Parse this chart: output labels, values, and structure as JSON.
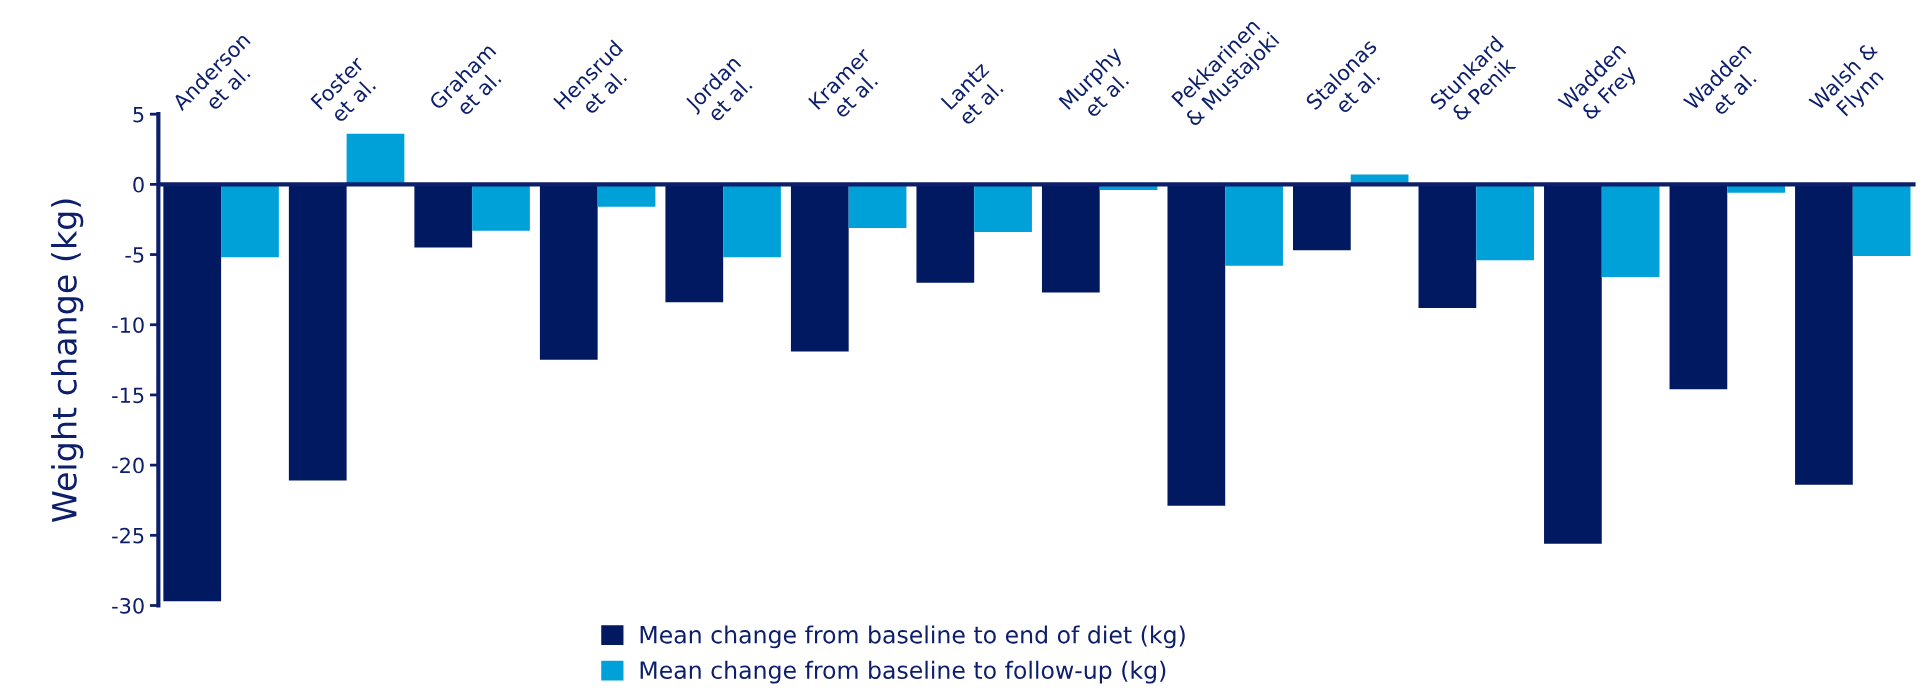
{
  "chart_data": {
    "type": "bar",
    "ylabel": "Weight change (kg)",
    "categories": [
      "Anderson\net al.",
      "Foster\net al.",
      "Graham\net al.",
      "Hensrud\net al.",
      "Jordan\net al.",
      "Kramer\net al.",
      "Lantz\net al.",
      "Murphy\net al.",
      "Pekkarinen\n& Mustajoki",
      "Stalonas\net al.",
      "Stunkard\n& Penik",
      "Wadden\n& Frey",
      "Wadden\net al.",
      "Walsh &\nFlynn"
    ],
    "series": [
      {
        "name": "Mean change from baseline to end of diet (kg)",
        "color": "#001960",
        "values": [
          -29.7,
          -21.1,
          -4.5,
          -12.5,
          -8.4,
          -11.9,
          -7.0,
          -7.7,
          -22.9,
          -4.7,
          -8.8,
          -25.6,
          -14.6,
          -21.4
        ]
      },
      {
        "name": "Mean change from baseline to follow-up (kg)",
        "color": "#00a0d8",
        "values": [
          -5.2,
          3.6,
          -3.3,
          -1.6,
          -5.2,
          -3.1,
          -3.4,
          -0.4,
          -5.8,
          0.7,
          -5.4,
          -6.6,
          -0.6,
          -5.1
        ]
      }
    ],
    "ylim": [
      -30,
      5
    ],
    "yticks": [
      5,
      0,
      -5,
      -10,
      -15,
      -20,
      -25,
      -30
    ],
    "ref_lines": [
      {
        "axis": "y",
        "value": 0,
        "color": "#0d1f6b"
      }
    ],
    "grid": false,
    "legend": "bottom"
  }
}
